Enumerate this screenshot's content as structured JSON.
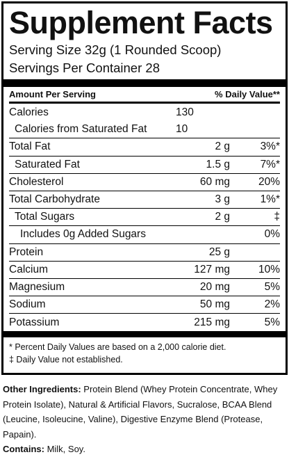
{
  "title": "Supplement Facts",
  "serving_size": "Serving Size 32g (1 Rounded Scoop)",
  "servings_per_container": "Servings Per Container  28",
  "header": {
    "amount_per_serving": "Amount Per Serving",
    "daily_value": "% Daily Value**"
  },
  "calories": {
    "name": "Calories",
    "amount": "130"
  },
  "calories_sat_fat": {
    "name": "Calories from Saturated Fat",
    "amount": "10"
  },
  "nutrients": [
    {
      "name": "Total Fat",
      "amount": "2 g",
      "dv": "3%*"
    },
    {
      "name": "Saturated Fat",
      "amount": "1.5 g",
      "dv": "7%*"
    },
    {
      "name": "Cholesterol",
      "amount": "60 mg",
      "dv": "20%"
    },
    {
      "name": "Total Carbohydrate",
      "amount": "3 g",
      "dv": "1%*"
    },
    {
      "name": "Total Sugars",
      "amount": "2 g",
      "dv": "‡"
    },
    {
      "name": "Includes 0g Added Sugars",
      "amount": "",
      "dv": "0%"
    },
    {
      "name": "Protein",
      "amount": "25 g",
      "dv": ""
    },
    {
      "name": "Calcium",
      "amount": "127 mg",
      "dv": "10%"
    },
    {
      "name": "Magnesium",
      "amount": "20 mg",
      "dv": "5%"
    },
    {
      "name": "Sodium",
      "amount": "50 mg",
      "dv": "2%"
    },
    {
      "name": "Potassium",
      "amount": "215 mg",
      "dv": "5%"
    }
  ],
  "footnotes": {
    "percent_note": "* Percent Daily Values are based on a 2,000 calorie diet.",
    "not_established": "‡ Daily Value not established."
  },
  "other_ingredients": {
    "label": "Other Ingredients:",
    "text": " Protein Blend (Whey Protein Concentrate, Whey Protein Isolate), Natural & Artificial Flavors, Sucralose, BCAA Blend (Leucine, Isoleucine, Valine), Digestive Enzyme Blend (Protease, Papain)."
  },
  "contains": {
    "label": "Contains:",
    "text": " Milk, Soy."
  }
}
